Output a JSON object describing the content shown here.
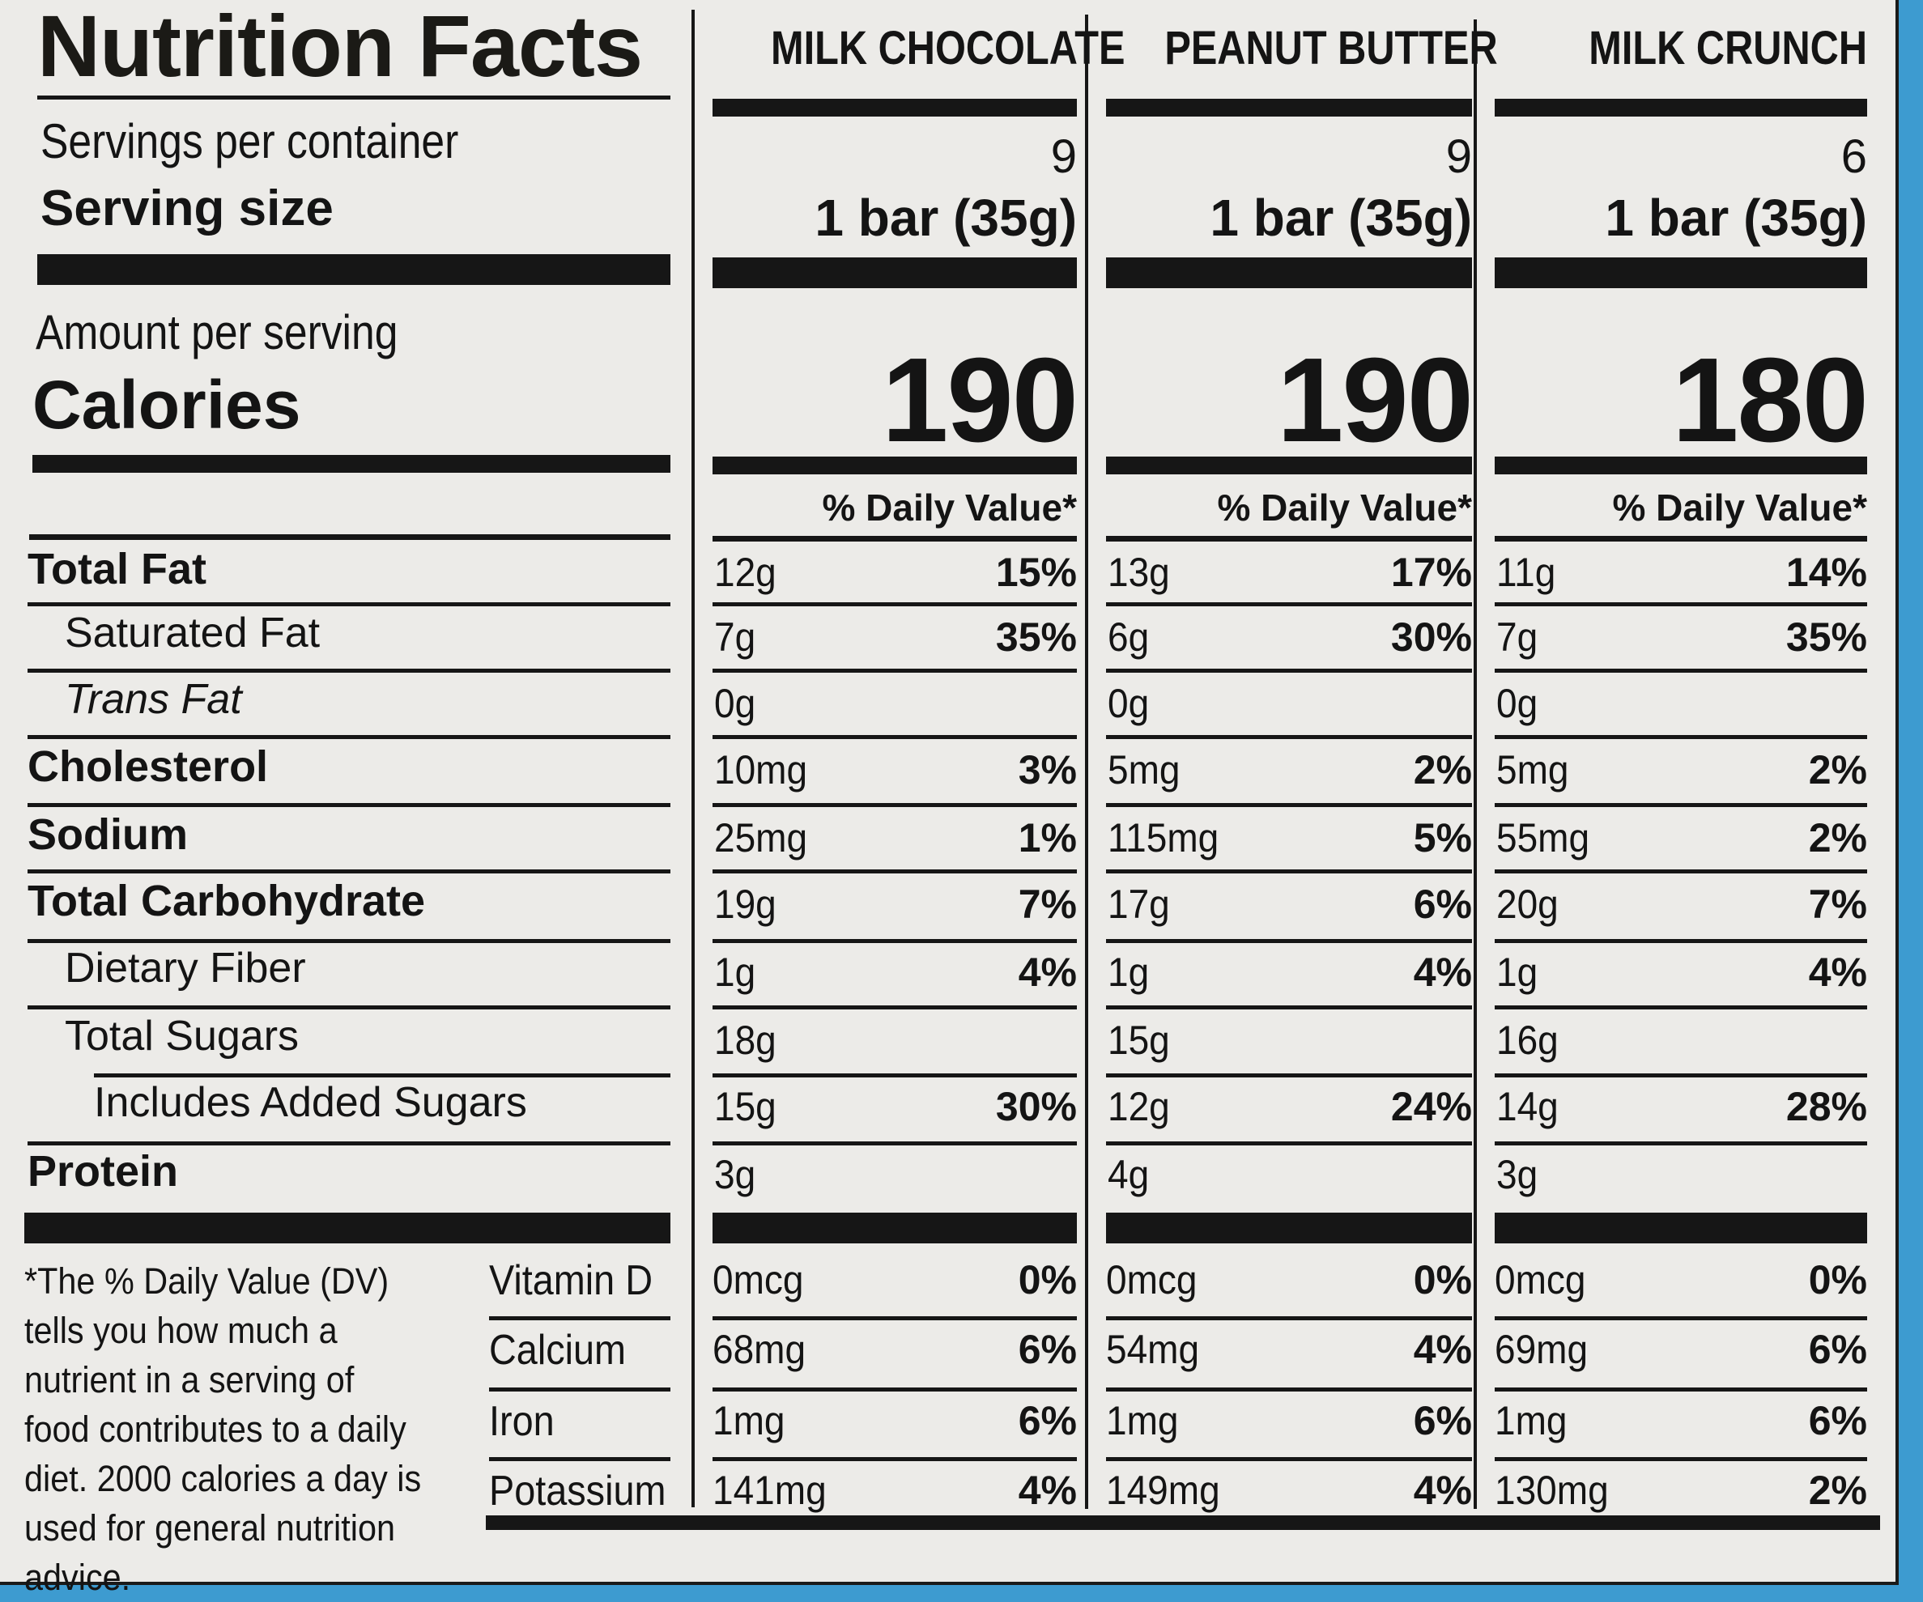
{
  "header": {
    "title": "Nutrition Facts",
    "servings_label": "Servings per container",
    "serving_size_label": "Serving size",
    "amount_label": "Amount per serving",
    "calories_label": "Calories"
  },
  "products": [
    {
      "name": "MILK CHOCOLATE",
      "servings": "9",
      "serving_size": "1 bar (35g)",
      "calories": "190",
      "dv_header": "% Daily Value*"
    },
    {
      "name": "PEANUT BUTTER",
      "servings": "9",
      "serving_size": "1 bar (35g)",
      "calories": "190",
      "dv_header": "% Daily Value*"
    },
    {
      "name": "MILK CRUNCH",
      "servings": "6",
      "serving_size": "1 bar (35g)",
      "calories": "180",
      "dv_header": "% Daily Value*"
    }
  ],
  "nutrients": [
    {
      "label": "Total Fat",
      "style": "bold",
      "values": [
        {
          "amt": "12g",
          "pct": "15%"
        },
        {
          "amt": "13g",
          "pct": "17%"
        },
        {
          "amt": "11g",
          "pct": "14%"
        }
      ]
    },
    {
      "label": "Saturated Fat",
      "style": "indent",
      "values": [
        {
          "amt": "7g",
          "pct": "35%"
        },
        {
          "amt": "6g",
          "pct": "30%"
        },
        {
          "amt": "7g",
          "pct": "35%"
        }
      ]
    },
    {
      "label": "Trans Fat",
      "style": "italic",
      "values": [
        {
          "amt": "0g",
          "pct": ""
        },
        {
          "amt": "0g",
          "pct": ""
        },
        {
          "amt": "0g",
          "pct": ""
        }
      ]
    },
    {
      "label": "Cholesterol",
      "style": "bold",
      "values": [
        {
          "amt": "10mg",
          "pct": "3%"
        },
        {
          "amt": "5mg",
          "pct": "2%"
        },
        {
          "amt": "5mg",
          "pct": "2%"
        }
      ]
    },
    {
      "label": "Sodium",
      "style": "bold",
      "values": [
        {
          "amt": "25mg",
          "pct": "1%"
        },
        {
          "amt": "115mg",
          "pct": "5%"
        },
        {
          "amt": "55mg",
          "pct": "2%"
        }
      ]
    },
    {
      "label": "Total Carbohydrate",
      "style": "bold",
      "values": [
        {
          "amt": "19g",
          "pct": "7%"
        },
        {
          "amt": "17g",
          "pct": "6%"
        },
        {
          "amt": "20g",
          "pct": "7%"
        }
      ]
    },
    {
      "label": "Dietary Fiber",
      "style": "indent",
      "values": [
        {
          "amt": "1g",
          "pct": "4%"
        },
        {
          "amt": "1g",
          "pct": "4%"
        },
        {
          "amt": "1g",
          "pct": "4%"
        }
      ]
    },
    {
      "label": "Total Sugars",
      "style": "indent",
      "values": [
        {
          "amt": "18g",
          "pct": ""
        },
        {
          "amt": "15g",
          "pct": ""
        },
        {
          "amt": "16g",
          "pct": ""
        }
      ]
    },
    {
      "label": "Includes Added Sugars",
      "style": "indent2",
      "values": [
        {
          "amt": "15g",
          "pct": "30%"
        },
        {
          "amt": "12g",
          "pct": "24%"
        },
        {
          "amt": "14g",
          "pct": "28%"
        }
      ]
    },
    {
      "label": "Protein",
      "style": "bold",
      "values": [
        {
          "amt": "3g",
          "pct": ""
        },
        {
          "amt": "4g",
          "pct": ""
        },
        {
          "amt": "3g",
          "pct": ""
        }
      ]
    }
  ],
  "vitamins": [
    {
      "label": "Vitamin D",
      "values": [
        {
          "amt": "0mcg",
          "pct": "0%"
        },
        {
          "amt": "0mcg",
          "pct": "0%"
        },
        {
          "amt": "0mcg",
          "pct": "0%"
        }
      ]
    },
    {
      "label": "Calcium",
      "values": [
        {
          "amt": "68mg",
          "pct": "6%"
        },
        {
          "amt": "54mg",
          "pct": "4%"
        },
        {
          "amt": "69mg",
          "pct": "6%"
        }
      ]
    },
    {
      "label": "Iron",
      "values": [
        {
          "amt": "1mg",
          "pct": "6%"
        },
        {
          "amt": "1mg",
          "pct": "6%"
        },
        {
          "amt": "1mg",
          "pct": "6%"
        }
      ]
    },
    {
      "label": "Potassium",
      "values": [
        {
          "amt": "141mg",
          "pct": "4%"
        },
        {
          "amt": "149mg",
          "pct": "4%"
        },
        {
          "amt": "130mg",
          "pct": "2%"
        }
      ]
    }
  ],
  "footnote": "*The % Daily Value (DV) tells you how much a nutrient in a serving of food contributes to a daily diet. 2000 calories a day is used for general nutrition advice."
}
